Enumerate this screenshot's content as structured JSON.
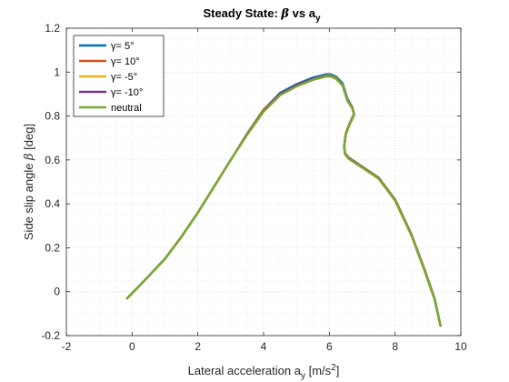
{
  "chart_data": {
    "type": "line",
    "title": {
      "prefix": "Steady State: ",
      "symbol": "β",
      "middle": " vs a",
      "sub": "y"
    },
    "xlabel": {
      "prefix": "Lateral acceleration a",
      "sub": "y",
      "unit_open": " [m/s",
      "sup": "2",
      "unit_close": "]"
    },
    "ylabel": {
      "prefix": "Side slip angle ",
      "symbol": "β",
      "suffix": " [deg]"
    },
    "xlim": [
      -2,
      10
    ],
    "ylim": [
      -0.2,
      1.2
    ],
    "xticks": [
      "-2",
      "0",
      "2",
      "4",
      "6",
      "8",
      "10"
    ],
    "yticks": [
      "-0.2",
      "0",
      "0.2",
      "0.4",
      "0.6",
      "0.8",
      "1",
      "1.2"
    ],
    "grid": "on, dotted major and minor",
    "legend_placement": "top-left",
    "series": [
      {
        "name": "γ= 5°",
        "color": "#0072BD",
        "x": [
          -0.15,
          0.5,
          1.0,
          1.5,
          2.0,
          2.5,
          3.0,
          3.5,
          4.0,
          4.5,
          5.0,
          5.5,
          5.9,
          6.05,
          6.2,
          6.4,
          6.55,
          6.7,
          6.75,
          6.6,
          6.5,
          6.45,
          6.48,
          6.6,
          7.0,
          7.5,
          8.0,
          8.5,
          8.9,
          9.2,
          9.38
        ],
        "y": [
          -0.03,
          0.07,
          0.15,
          0.25,
          0.36,
          0.48,
          0.6,
          0.72,
          0.83,
          0.905,
          0.945,
          0.975,
          0.99,
          0.99,
          0.98,
          0.95,
          0.88,
          0.84,
          0.81,
          0.76,
          0.72,
          0.66,
          0.63,
          0.61,
          0.57,
          0.52,
          0.42,
          0.26,
          0.1,
          -0.03,
          -0.155
        ]
      },
      {
        "name": "γ= 10°",
        "color": "#D95319",
        "x": [
          -0.15,
          0.5,
          1.0,
          1.5,
          2.0,
          2.5,
          3.0,
          3.5,
          4.0,
          4.5,
          5.0,
          5.5,
          5.9,
          6.05,
          6.2,
          6.4,
          6.55,
          6.7,
          6.75,
          6.6,
          6.5,
          6.45,
          6.48,
          6.6,
          7.0,
          7.5,
          8.0,
          8.5,
          8.9,
          9.2,
          9.38
        ],
        "y": [
          -0.03,
          0.07,
          0.15,
          0.25,
          0.36,
          0.48,
          0.6,
          0.715,
          0.82,
          0.895,
          0.935,
          0.965,
          0.98,
          0.98,
          0.97,
          0.94,
          0.87,
          0.835,
          0.805,
          0.755,
          0.715,
          0.655,
          0.625,
          0.605,
          0.565,
          0.515,
          0.415,
          0.255,
          0.095,
          -0.035,
          -0.155
        ]
      },
      {
        "name": "γ= -5°",
        "color": "#EDB120",
        "x": [
          -0.15,
          0.5,
          1.0,
          1.5,
          2.0,
          2.5,
          3.0,
          3.5,
          4.0,
          4.5,
          5.0,
          5.5,
          5.9,
          6.05,
          6.2,
          6.4,
          6.55,
          6.7,
          6.75,
          6.6,
          6.5,
          6.45,
          6.48,
          6.6,
          7.0,
          7.5,
          8.0,
          8.5,
          8.9,
          9.2,
          9.38
        ],
        "y": [
          -0.03,
          0.07,
          0.15,
          0.25,
          0.36,
          0.48,
          0.6,
          0.72,
          0.83,
          0.9,
          0.94,
          0.97,
          0.985,
          0.985,
          0.975,
          0.945,
          0.875,
          0.84,
          0.81,
          0.76,
          0.72,
          0.66,
          0.63,
          0.61,
          0.57,
          0.52,
          0.42,
          0.26,
          0.1,
          -0.03,
          -0.155
        ]
      },
      {
        "name": "γ= -10°",
        "color": "#7E2F8E",
        "x": [
          -0.15,
          0.5,
          1.0,
          1.5,
          2.0,
          2.5,
          3.0,
          3.5,
          4.0,
          4.5,
          5.0,
          5.5,
          5.9,
          6.05,
          6.2,
          6.4,
          6.55,
          6.7,
          6.75,
          6.6,
          6.5,
          6.45,
          6.48,
          6.6,
          7.0,
          7.5,
          8.0,
          8.5,
          8.9,
          9.2,
          9.38
        ],
        "y": [
          -0.03,
          0.07,
          0.15,
          0.25,
          0.36,
          0.48,
          0.6,
          0.718,
          0.825,
          0.9,
          0.94,
          0.97,
          0.983,
          0.983,
          0.973,
          0.943,
          0.873,
          0.838,
          0.808,
          0.758,
          0.718,
          0.658,
          0.628,
          0.608,
          0.568,
          0.518,
          0.418,
          0.258,
          0.098,
          -0.032,
          -0.155
        ]
      },
      {
        "name": "neutral",
        "color": "#77AC30",
        "x": [
          -0.15,
          0.5,
          1.0,
          1.5,
          2.0,
          2.5,
          3.0,
          3.5,
          4.0,
          4.5,
          5.0,
          5.5,
          5.9,
          6.05,
          6.2,
          6.4,
          6.55,
          6.7,
          6.75,
          6.6,
          6.5,
          6.45,
          6.48,
          6.6,
          7.0,
          7.5,
          8.0,
          8.5,
          8.9,
          9.2,
          9.38
        ],
        "y": [
          -0.03,
          0.07,
          0.15,
          0.25,
          0.36,
          0.48,
          0.6,
          0.715,
          0.82,
          0.895,
          0.935,
          0.965,
          0.98,
          0.98,
          0.97,
          0.94,
          0.87,
          0.835,
          0.805,
          0.755,
          0.715,
          0.655,
          0.625,
          0.605,
          0.565,
          0.515,
          0.415,
          0.255,
          0.095,
          -0.035,
          -0.155
        ]
      }
    ]
  }
}
